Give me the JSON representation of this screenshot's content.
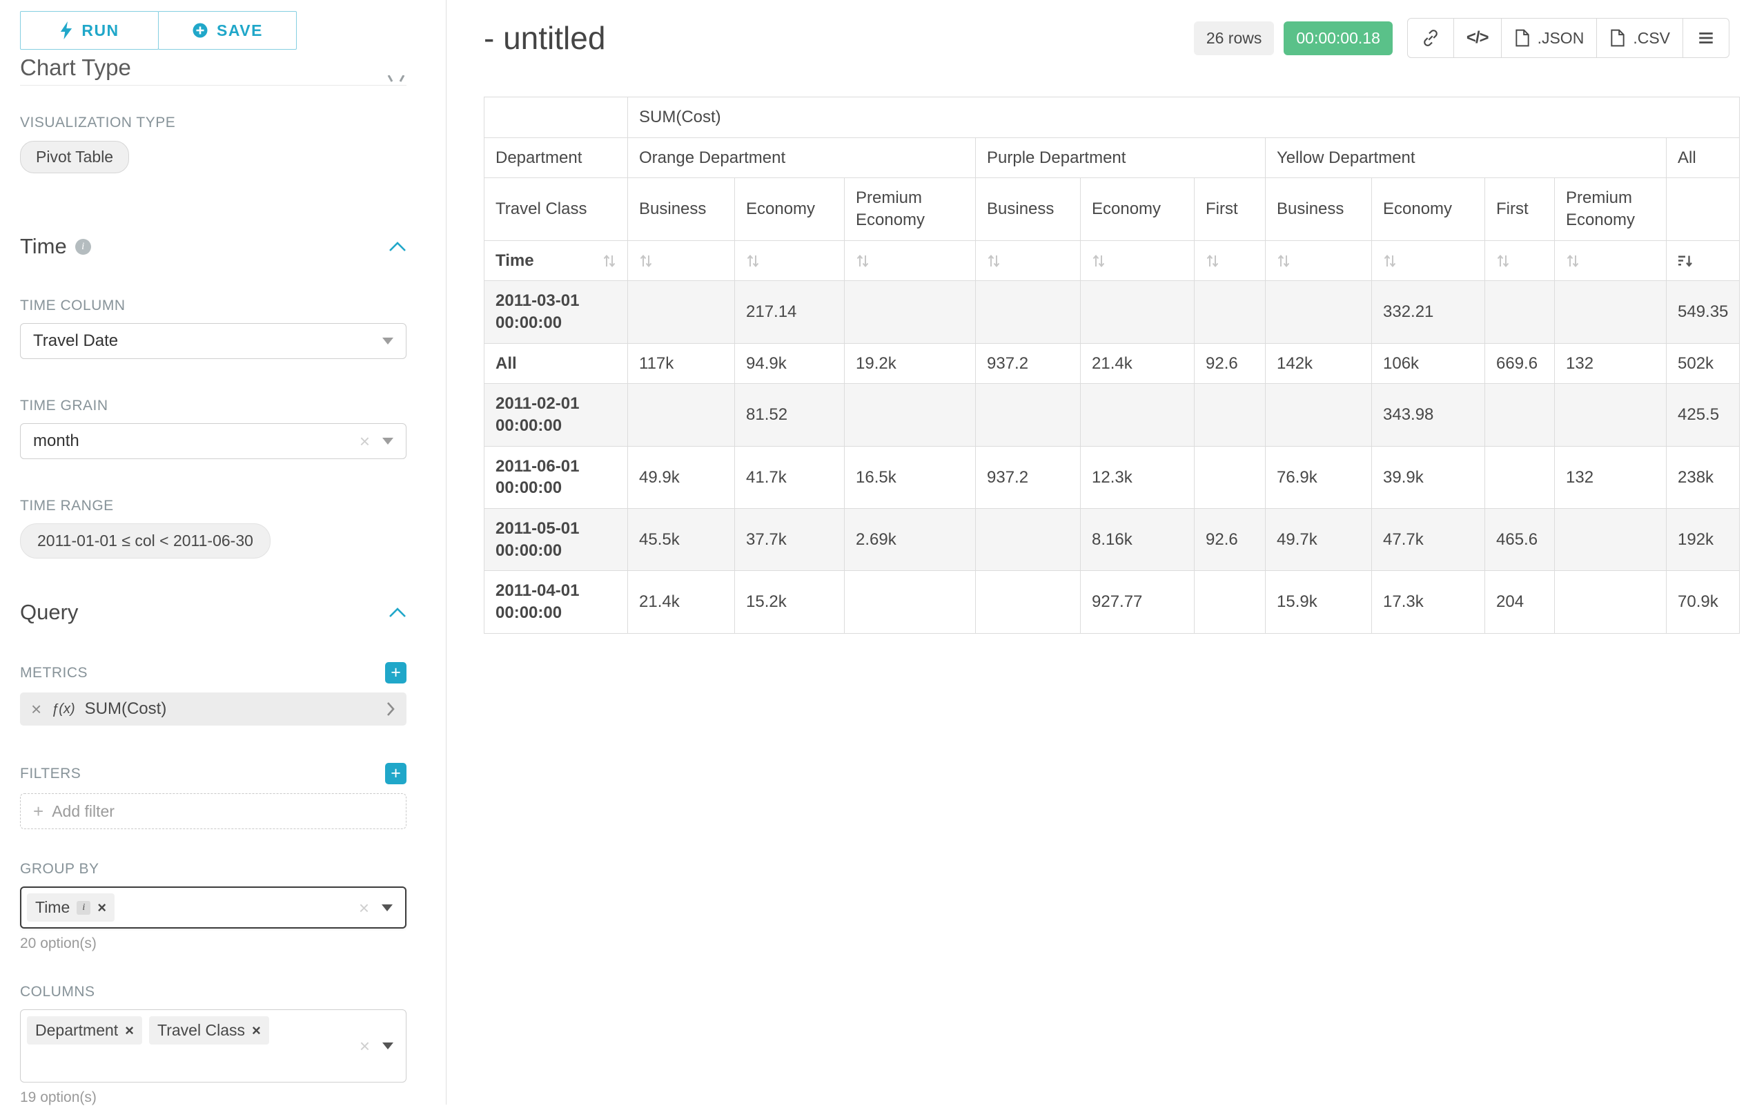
{
  "colors": {
    "accent": "#20a7c9",
    "success": "#5ac189"
  },
  "toolbar": {
    "run": "RUN",
    "save": "SAVE"
  },
  "sidebar": {
    "clipped_heading": "Chart Type",
    "viz_type_label": "VISUALIZATION TYPE",
    "viz_type_value": "Pivot Table",
    "time": {
      "title": "Time",
      "column_label": "TIME COLUMN",
      "column_value": "Travel Date",
      "grain_label": "TIME GRAIN",
      "grain_value": "month",
      "range_label": "TIME RANGE",
      "range_value": "2011-01-01 ≤ col < 2011-06-30"
    },
    "query": {
      "title": "Query",
      "metrics_label": "METRICS",
      "metric_fx": "ƒ(x)",
      "metric_name": "SUM(Cost)",
      "filters_label": "FILTERS",
      "add_filter": "Add filter",
      "groupby_label": "GROUP BY",
      "groupby_chips": [
        "Time"
      ],
      "groupby_hint": "20 option(s)",
      "columns_label": "COLUMNS",
      "columns_chips": [
        "Department",
        "Travel Class"
      ],
      "columns_hint": "19 option(s)"
    }
  },
  "main": {
    "title": "- untitled",
    "rows_badge": "26 rows",
    "timer": "00:00:00.18",
    "code_icon": "</>",
    "json_btn": ".JSON",
    "csv_btn": ".CSV"
  },
  "chart_data": {
    "type": "table",
    "metric": "SUM(Cost)",
    "col_dim_label": "Department",
    "col_sub_label": "Travel Class",
    "row_dim_label": "Time",
    "groups": [
      {
        "name": "Orange Department",
        "cols": [
          "Business",
          "Economy",
          "Premium Economy"
        ]
      },
      {
        "name": "Purple Department",
        "cols": [
          "Business",
          "Economy",
          "First"
        ]
      },
      {
        "name": "Yellow Department",
        "cols": [
          "Business",
          "Economy",
          "First",
          "Premium Economy"
        ]
      }
    ],
    "total_col": "All",
    "rows": [
      {
        "label": "2011-03-01 00:00:00",
        "values": [
          "",
          "217.14",
          "",
          "",
          "",
          "",
          "",
          "332.21",
          "",
          "",
          "549.35"
        ]
      },
      {
        "label": "All",
        "values": [
          "117k",
          "94.9k",
          "19.2k",
          "937.2",
          "21.4k",
          "92.6",
          "142k",
          "106k",
          "669.6",
          "132",
          "502k"
        ]
      },
      {
        "label": "2011-02-01 00:00:00",
        "values": [
          "",
          "81.52",
          "",
          "",
          "",
          "",
          "",
          "343.98",
          "",
          "",
          "425.5"
        ]
      },
      {
        "label": "2011-06-01 00:00:00",
        "values": [
          "49.9k",
          "41.7k",
          "16.5k",
          "937.2",
          "12.3k",
          "",
          "76.9k",
          "39.9k",
          "",
          "132",
          "238k"
        ]
      },
      {
        "label": "2011-05-01 00:00:00",
        "values": [
          "45.5k",
          "37.7k",
          "2.69k",
          "",
          "8.16k",
          "92.6",
          "49.7k",
          "47.7k",
          "465.6",
          "",
          "192k"
        ]
      },
      {
        "label": "2011-04-01 00:00:00",
        "values": [
          "21.4k",
          "15.2k",
          "",
          "",
          "927.77",
          "",
          "15.9k",
          "17.3k",
          "204",
          "",
          "70.9k"
        ]
      }
    ]
  }
}
